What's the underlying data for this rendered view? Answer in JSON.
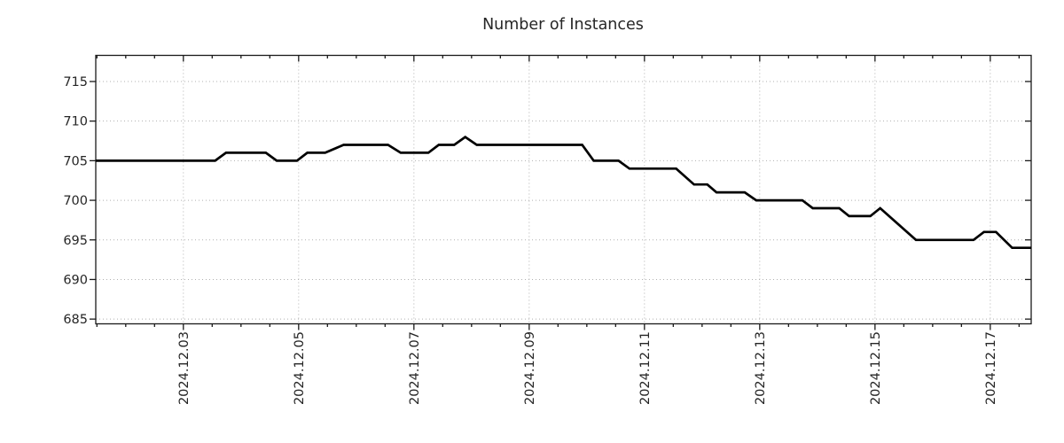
{
  "page": {
    "background": "#ffffff"
  },
  "colors": {
    "line": "#000000",
    "grid": "#b0b0b0",
    "axis": "#1a1a1a",
    "text": "#262626",
    "background": "#ffffff"
  },
  "chart_data": {
    "type": "line",
    "title": "Number of Instances",
    "xlabel": "",
    "ylabel": "",
    "legend": "none",
    "grid": {
      "style": "dotted",
      "on": "major-both-axes"
    },
    "x_unit": "date, December 2024 (fractional day of month)",
    "xlim": [
      1.48,
      17.71
    ],
    "ylim": [
      684.4,
      718.3
    ],
    "x_minor_step": 0.5,
    "x_tick_label_rotation_deg": 90,
    "xticks": [
      {
        "value": 3,
        "label": "2024.12.03"
      },
      {
        "value": 5,
        "label": "2024.12.05"
      },
      {
        "value": 7,
        "label": "2024.12.07"
      },
      {
        "value": 9,
        "label": "2024.12.09"
      },
      {
        "value": 11,
        "label": "2024.12.11"
      },
      {
        "value": 13,
        "label": "2024.12.13"
      },
      {
        "value": 15,
        "label": "2024.12.15"
      },
      {
        "value": 17,
        "label": "2024.12.17"
      }
    ],
    "yticks": [
      {
        "value": 685,
        "label": "685"
      },
      {
        "value": 690,
        "label": "690"
      },
      {
        "value": 695,
        "label": "695"
      },
      {
        "value": 700,
        "label": "700"
      },
      {
        "value": 705,
        "label": "705"
      },
      {
        "value": 710,
        "label": "710"
      },
      {
        "value": 715,
        "label": "715"
      }
    ],
    "series": [
      {
        "name": "Number of Instances",
        "color": "#000000",
        "width": 2.7,
        "points": [
          [
            1.48,
            705
          ],
          [
            3.55,
            705
          ],
          [
            3.74,
            706
          ],
          [
            4.43,
            706
          ],
          [
            4.62,
            705
          ],
          [
            4.97,
            705
          ],
          [
            5.15,
            706
          ],
          [
            5.46,
            706
          ],
          [
            5.78,
            707
          ],
          [
            6.55,
            707
          ],
          [
            6.77,
            706
          ],
          [
            7.25,
            706
          ],
          [
            7.43,
            707
          ],
          [
            7.7,
            707
          ],
          [
            7.89,
            708
          ],
          [
            8.09,
            707
          ],
          [
            9.92,
            707
          ],
          [
            10.12,
            705
          ],
          [
            10.55,
            705
          ],
          [
            10.74,
            704
          ],
          [
            11.55,
            704
          ],
          [
            11.86,
            702
          ],
          [
            12.09,
            702
          ],
          [
            12.25,
            701
          ],
          [
            12.74,
            701
          ],
          [
            12.94,
            700
          ],
          [
            13.74,
            700
          ],
          [
            13.92,
            699
          ],
          [
            14.38,
            699
          ],
          [
            14.55,
            698
          ],
          [
            14.92,
            698
          ],
          [
            15.09,
            699
          ],
          [
            15.71,
            695
          ],
          [
            16.71,
            695
          ],
          [
            16.89,
            696
          ],
          [
            17.1,
            696
          ],
          [
            17.38,
            694
          ],
          [
            17.71,
            694
          ]
        ]
      }
    ]
  }
}
